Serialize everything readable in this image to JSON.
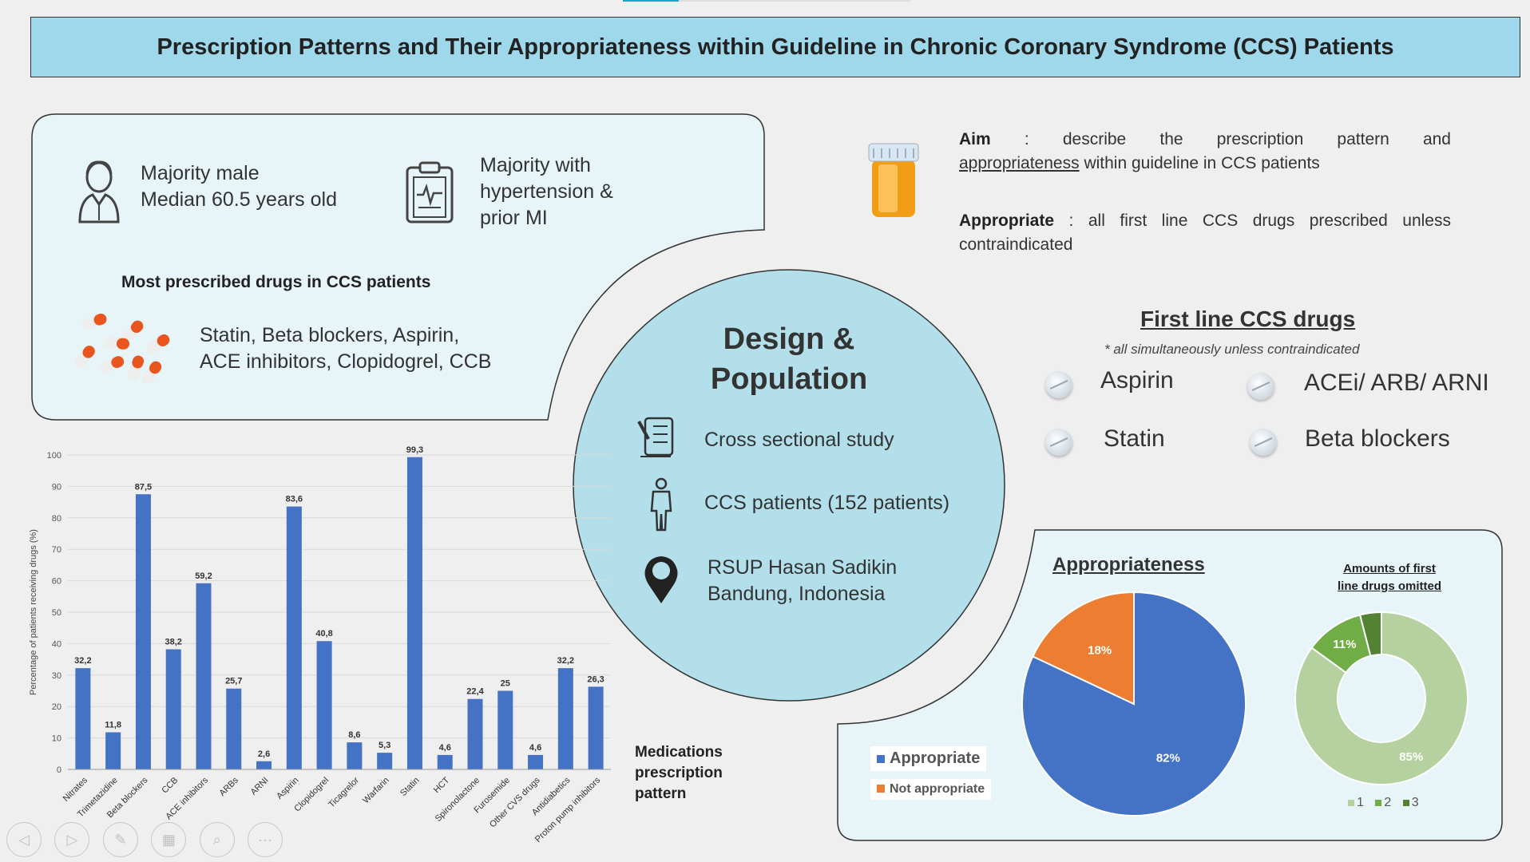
{
  "title": "Prescription Patterns and Their Appropriateness within Guideline in Chronic Coronary Syndrome (CCS) Patients",
  "demographics": {
    "line1": "Majority male",
    "line2": "Median 60.5 years old"
  },
  "history": {
    "line1": "Majority with",
    "line2": "hypertension &",
    "line3": "prior MI"
  },
  "most_prescribed": {
    "heading": "Most prescribed drugs in CCS patients",
    "line1": "Statin, Beta blockers, Aspirin,",
    "line2": "ACE inhibitors, Clopidogrel, CCB"
  },
  "aim": {
    "label": "Aim",
    "separator": ":",
    "text1": "describe the prescription pattern and",
    "underlined": "appropriateness",
    "text2": "within guideline in CCS patients"
  },
  "appropriate_def": {
    "label": "Appropriate",
    "text": ": all first line CCS drugs prescribed unless contraindicated"
  },
  "design": {
    "title_line1": "Design &",
    "title_line2": "Population",
    "items": [
      {
        "text": "Cross sectional study",
        "icon": "checklist-icon"
      },
      {
        "text": "CCS patients (152 patients)",
        "icon": "person-icon"
      },
      {
        "line1": "RSUP Hasan Sadikin",
        "line2": "Bandung, Indonesia",
        "icon": "location-pin-icon"
      }
    ]
  },
  "first_line": {
    "heading": "First line CCS drugs",
    "note": "* all simultaneously unless contraindicated",
    "drugs": [
      "Aspirin",
      "ACEi/ ARB/ ARNI",
      "Statin",
      "Beta blockers"
    ]
  },
  "medications_caption": {
    "line1": "Medications",
    "line2": "prescription",
    "line3": "pattern"
  },
  "appropriateness_heading": "Appropriateness",
  "omitted_heading": {
    "line1": "Amounts of first",
    "line2": "line drugs omitted"
  },
  "player_controls": [
    "previous",
    "next",
    "pen",
    "slides",
    "zoom",
    "more"
  ],
  "chart_data": [
    {
      "type": "bar",
      "title": "Medications prescription pattern",
      "ylabel": "Percentage of patients receiving drugs (%)",
      "ylim": [
        0,
        100
      ],
      "yticks": [
        0,
        10,
        20,
        30,
        40,
        50,
        60,
        70,
        80,
        90,
        100
      ],
      "grid": true,
      "color": "#4472c4",
      "categories": [
        "Nitrates",
        "Trimetazidine",
        "Beta blockers",
        "CCB",
        "ACE inhibitors",
        "ARBs",
        "ARNI",
        "Aspirin",
        "Clopidogrel",
        "Ticagrelor",
        "Warfarin",
        "Statin",
        "HCT",
        "Spironolactone",
        "Furosemide",
        "Other CVS drugs",
        "Antidiabetics",
        "Proton pump inhibitors"
      ],
      "values": [
        32.2,
        11.8,
        87.5,
        38.2,
        59.2,
        25.7,
        2.6,
        83.6,
        40.8,
        8.6,
        5.3,
        99.3,
        4.6,
        22.4,
        25,
        4.6,
        32.2,
        26.3
      ],
      "value_labels": [
        "32,2",
        "11,8",
        "87,5",
        "38,2",
        "59,2",
        "25,7",
        "2,6",
        "83,6",
        "40,8",
        "8,6",
        "5,3",
        "99,3",
        "4,6",
        "22,4",
        "25",
        "4,6",
        "32,2",
        "26,3"
      ]
    },
    {
      "type": "pie",
      "title": "Appropriateness",
      "categories": [
        "Appropriate",
        "Not appropriate"
      ],
      "values": [
        82,
        18
      ],
      "value_labels": [
        "82%",
        "18%"
      ],
      "colors": [
        "#4472c4",
        "#ed7d31"
      ],
      "legend": "bottom-left"
    },
    {
      "type": "pie",
      "subtype": "donut",
      "title": "Amounts of first line drugs omitted",
      "categories": [
        "1",
        "2",
        "3"
      ],
      "values": [
        85,
        11,
        4
      ],
      "value_labels": [
        "85%",
        "11%",
        ""
      ],
      "colors": [
        "#b5d1a0",
        "#70ad47",
        "#548235"
      ],
      "legend": "bottom"
    }
  ]
}
